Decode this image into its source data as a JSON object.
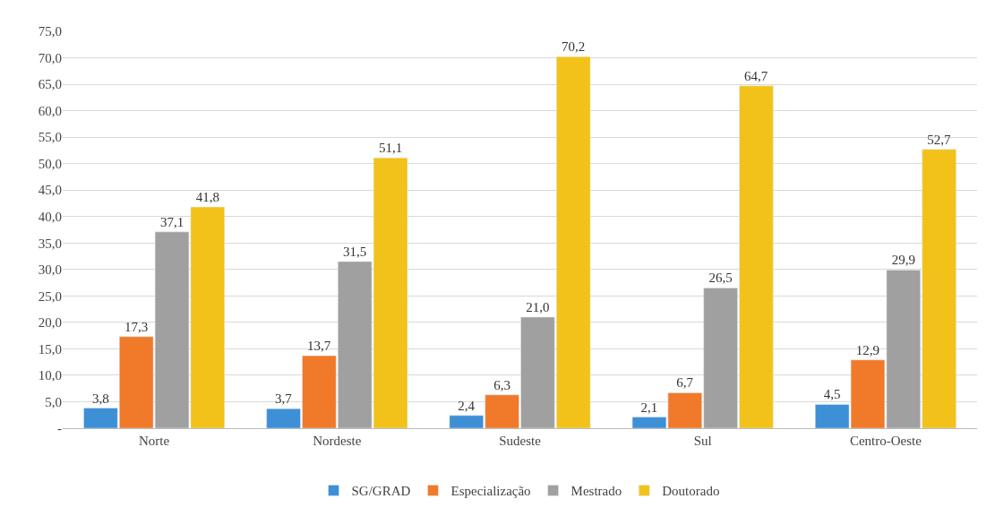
{
  "chart_data": {
    "type": "bar",
    "categories": [
      "Norte",
      "Nordeste",
      "Sudeste",
      "Sul",
      "Centro-Oeste"
    ],
    "series": [
      {
        "name": "SG/GRAD",
        "color": "#3d8fd6",
        "values": [
          3.8,
          3.7,
          2.4,
          2.1,
          4.5
        ],
        "value_labels": [
          "3,8",
          "3,7",
          "2,4",
          "2,1",
          "4,5"
        ]
      },
      {
        "name": "Especialização",
        "color": "#f07a2a",
        "values": [
          17.3,
          13.7,
          6.3,
          6.7,
          12.9
        ],
        "value_labels": [
          "17,3",
          "13,7",
          "6,3",
          "6,7",
          "12,9"
        ]
      },
      {
        "name": "Mestrado",
        "color": "#a0a0a0",
        "values": [
          37.1,
          31.5,
          21.0,
          26.5,
          29.9
        ],
        "value_labels": [
          "37,1",
          "31,5",
          "21,0",
          "26,5",
          "29,9"
        ]
      },
      {
        "name": "Doutorado",
        "color": "#f2c21a",
        "values": [
          41.8,
          51.1,
          70.2,
          64.7,
          52.7
        ],
        "value_labels": [
          "41,8",
          "51,1",
          "70,2",
          "64,7",
          "52,7"
        ]
      }
    ],
    "ylim": [
      0,
      75
    ],
    "yticks": [
      {
        "value": 0,
        "label": "-"
      },
      {
        "value": 5,
        "label": "5,0"
      },
      {
        "value": 10,
        "label": "10,0"
      },
      {
        "value": 15,
        "label": "15,0"
      },
      {
        "value": 20,
        "label": "20,0"
      },
      {
        "value": 25,
        "label": "25,0"
      },
      {
        "value": 30,
        "label": "30,0"
      },
      {
        "value": 35,
        "label": "35,0"
      },
      {
        "value": 40,
        "label": "40,0"
      },
      {
        "value": 45,
        "label": "45,0"
      },
      {
        "value": 50,
        "label": "50,0"
      },
      {
        "value": 55,
        "label": "55,0"
      },
      {
        "value": 60,
        "label": "60,0"
      },
      {
        "value": 65,
        "label": "65,0"
      },
      {
        "value": 70,
        "label": "70,0"
      },
      {
        "value": 75,
        "label": "75,0"
      }
    ],
    "grid": "y",
    "legend": "bottom"
  }
}
